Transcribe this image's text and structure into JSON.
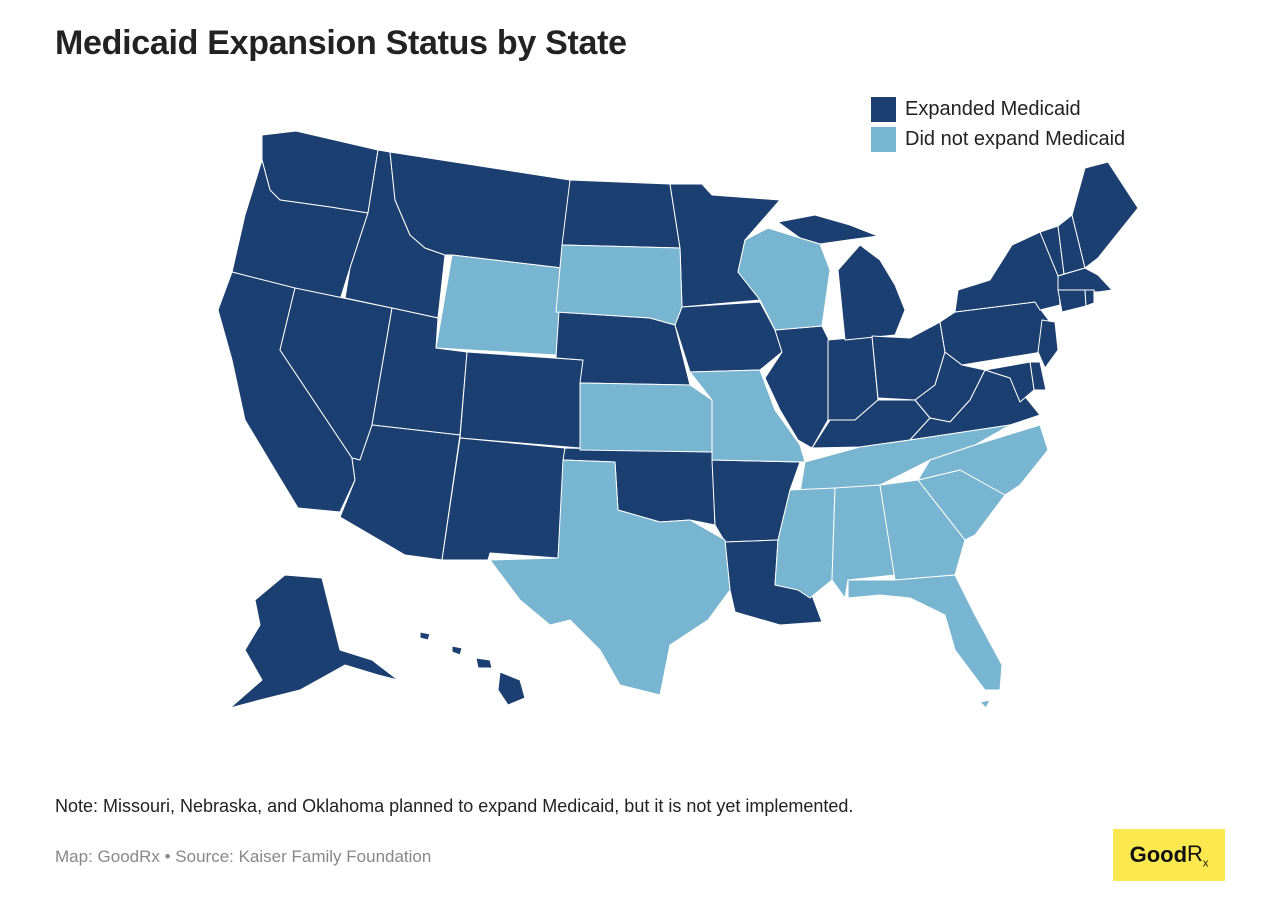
{
  "title": "Medicaid Expansion Status by State",
  "legend": {
    "expanded_label": "Expanded Medicaid",
    "not_expanded_label": "Did not expand Medicaid"
  },
  "colors": {
    "expanded": "#1c3f72",
    "not_expanded": "#78b5d0",
    "logo_bg": "#fce94f"
  },
  "map": {
    "expanded_states": [
      "WA",
      "OR",
      "CA",
      "NV",
      "ID",
      "MT",
      "UT",
      "AZ",
      "CO",
      "NM",
      "ND",
      "NE",
      "MN",
      "IA",
      "OK",
      "AR",
      "LA",
      "MO_note",
      "IL",
      "IN",
      "MI",
      "OH",
      "KY",
      "WV",
      "VA",
      "PA",
      "NY",
      "ME",
      "VT",
      "NH",
      "MA",
      "CT",
      "RI",
      "NJ",
      "DE",
      "MD",
      "AK",
      "HI"
    ],
    "not_expanded_states": [
      "WY",
      "SD",
      "KS",
      "TX",
      "MO",
      "WI",
      "MS",
      "AL",
      "TN",
      "GA",
      "SC",
      "NC",
      "FL"
    ]
  },
  "note": "Note: Missouri, Nebraska, and Oklahoma planned to expand Medicaid, but it is not yet implemented.",
  "credit": "Map: GoodRx • Source: Kaiser Family Foundation",
  "logo": {
    "text": "Good",
    "rx": "R",
    "rx_sub": "x"
  }
}
